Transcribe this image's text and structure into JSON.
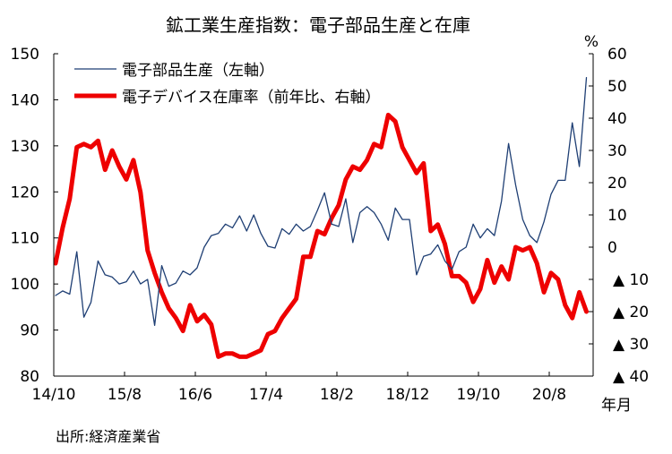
{
  "chart_data": {
    "type": "line",
    "title": "鉱工業生産指数：電子部品生産と在庫",
    "source": "出所:経済産業省",
    "x_unit_label": "年月",
    "right_unit_label": "%",
    "x_tick_labels": [
      "14/10",
      "15/8",
      "16/6",
      "17/4",
      "18/2",
      "18/12",
      "19/10",
      "20/8"
    ],
    "left_axis": {
      "ylim": [
        80,
        150
      ],
      "ticks": [
        "80",
        "90",
        "100",
        "110",
        "120",
        "130",
        "140",
        "150"
      ]
    },
    "right_axis": {
      "ylim": [
        -40,
        60
      ],
      "ticks": [
        "60",
        "50",
        "40",
        "30",
        "20",
        "10",
        "0",
        "▲ 10",
        "▲ 20",
        "▲ 30",
        "▲ 40"
      ],
      "tick_values": [
        60,
        50,
        40,
        30,
        20,
        10,
        0,
        -10,
        -20,
        -30,
        -40
      ]
    },
    "legend_position": "top-left",
    "grid": false,
    "series": [
      {
        "name": "電子部品生産（左軸）",
        "axis": "left",
        "color": "#1f3f74",
        "values": [
          97.5,
          98.5,
          97.8,
          107,
          92.8,
          96,
          105,
          102,
          101.5,
          100,
          100.5,
          102.8,
          100,
          101,
          91,
          104,
          99.5,
          100.2,
          102.8,
          102,
          103.5,
          108,
          110.5,
          111,
          113,
          112.2,
          114.8,
          111.5,
          115,
          111,
          108.2,
          107.8,
          112,
          110.8,
          113,
          111.5,
          112.5,
          116,
          119.8,
          113,
          112.5,
          118.5,
          109,
          115.5,
          116.8,
          115.5,
          113,
          109.5,
          116.5,
          114,
          114,
          102,
          106,
          106.5,
          108.5,
          105,
          103.2,
          107,
          108,
          113,
          110,
          112,
          110.5,
          118,
          130.5,
          121.5,
          114,
          110.5,
          109,
          113.5,
          119.5,
          122.5,
          122.5,
          135,
          125.5,
          144.8
        ]
      },
      {
        "name": "電子デバイス在庫率（前年比、右軸）",
        "axis": "right",
        "color": "#ee0000",
        "values": [
          -5,
          6,
          15,
          31,
          32,
          31,
          33,
          24,
          30,
          25,
          21,
          27,
          17,
          -1,
          -8,
          -14,
          -19,
          -22,
          -26,
          -18,
          -23,
          -21,
          -24,
          -34,
          -33,
          -33,
          -34,
          -34,
          -33,
          -32,
          -27,
          -26,
          -22,
          -19,
          -16,
          -3,
          -3,
          5,
          4,
          9,
          13,
          21,
          25,
          24,
          27,
          32,
          31,
          41,
          39,
          31,
          27,
          23,
          26,
          5,
          7,
          1,
          -9,
          -9,
          -11,
          -17,
          -13,
          -4,
          -11,
          -6,
          -10,
          0,
          -1,
          0,
          -5,
          -14,
          -8,
          -10,
          -18,
          -22,
          -14,
          -20
        ]
      }
    ]
  }
}
